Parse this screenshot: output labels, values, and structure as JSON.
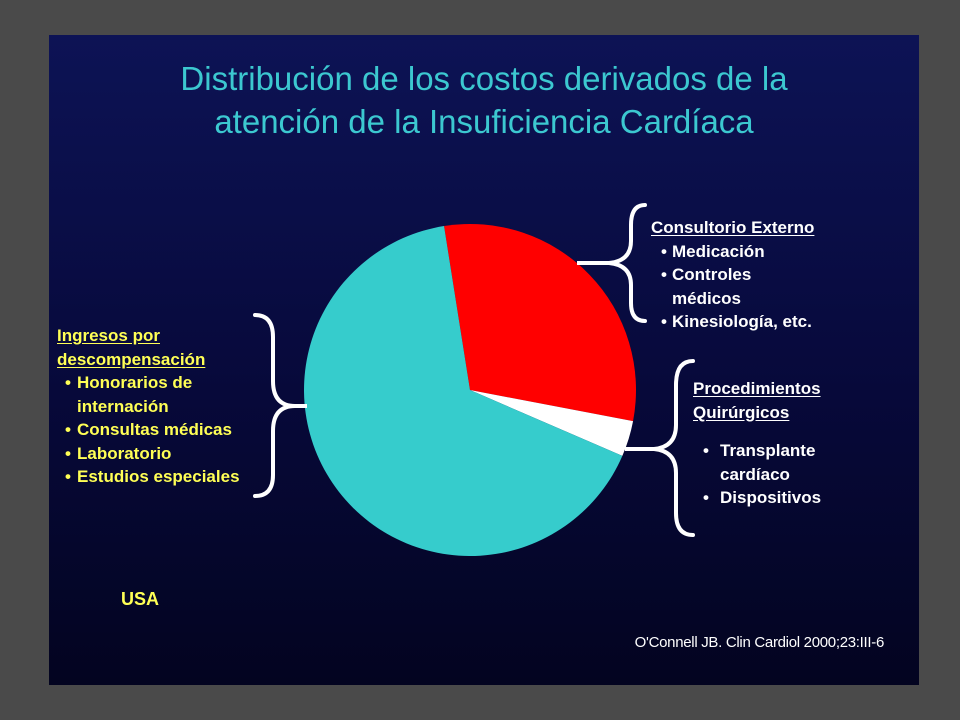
{
  "slide": {
    "title_line1": "Distribución de los costos derivados de la",
    "title_line2": "atención de la Insuficiencia Cardíaca",
    "region": "USA",
    "citation": "O'Connell JB. Clin Cardiol 2000;23:III-6"
  },
  "colors": {
    "background": "#0b1050",
    "title": "#3cc8d0",
    "highlight": "#ffff55",
    "slice_ingresos": "#36cccc",
    "slice_consultorio": "#ff0000",
    "slice_procedimientos": "#ffffff"
  },
  "groups": {
    "left": {
      "heading_line1": "Ingresos por",
      "heading_line2": "descompensación",
      "items": [
        "Honorarios de internación",
        "Consultas médicas",
        "Laboratorio",
        "Estudios especiales"
      ]
    },
    "top_right": {
      "heading": "Consultorio Externo",
      "items": [
        "Medicación",
        "Controles médicos",
        "Kinesiología, etc."
      ]
    },
    "bottom_right": {
      "heading_line1": "Procedimientos",
      "heading_line2": "Quirúrgicos",
      "items": [
        "Transplante cardíaco",
        "Dispositivos"
      ]
    }
  },
  "chart_data": {
    "type": "pie",
    "title": "Distribución de los costos derivados de la atención de la Insuficiencia Cardíaca",
    "categories": [
      "Consultorio Externo",
      "Procedimientos Quirúrgicos",
      "Ingresos por descompensación"
    ],
    "values": [
      30.5,
      3.5,
      66
    ],
    "unit": "%",
    "start_angle_deg": 351,
    "colors": [
      "#ff0000",
      "#ffffff",
      "#36cccc"
    ]
  }
}
